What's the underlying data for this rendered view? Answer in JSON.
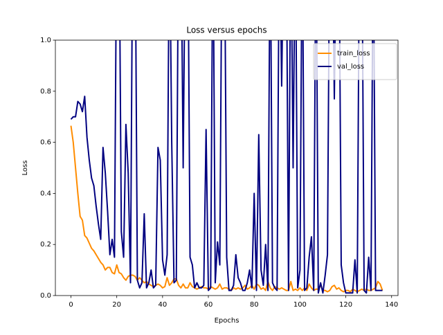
{
  "chart_data": {
    "type": "line",
    "title": "Loss versus epochs",
    "xlabel": "Epochs",
    "ylabel": "Loss",
    "x": [
      0,
      1,
      2,
      3,
      4,
      5,
      6,
      7,
      8,
      9,
      10,
      11,
      12,
      13,
      14,
      15,
      16,
      17,
      18,
      19,
      20,
      21,
      22,
      23,
      24,
      25,
      26,
      27,
      28,
      29,
      30,
      31,
      32,
      33,
      34,
      35,
      36,
      37,
      38,
      39,
      40,
      41,
      42,
      43,
      44,
      45,
      46,
      47,
      48,
      49,
      50,
      51,
      52,
      53,
      54,
      55,
      56,
      57,
      58,
      59,
      60,
      61,
      62,
      63,
      64,
      65,
      66,
      67,
      68,
      69,
      70,
      71,
      72,
      73,
      74,
      75,
      76,
      77,
      78,
      79,
      80,
      81,
      82,
      83,
      84,
      85,
      86,
      87,
      88,
      89,
      90,
      91,
      92,
      93,
      94,
      95,
      96,
      97,
      98,
      99,
      100,
      101,
      102,
      103,
      104,
      105,
      106,
      107,
      108,
      109,
      110,
      111,
      112,
      113,
      114,
      115,
      116,
      117,
      118,
      119,
      120,
      121,
      122,
      123,
      124,
      125,
      126,
      127,
      128,
      129,
      130,
      131,
      132,
      133,
      134,
      135,
      136
    ],
    "series": [
      {
        "name": "train_loss",
        "color": "#ff8c00",
        "values": [
          0.665,
          0.6,
          0.5,
          0.4,
          0.31,
          0.295,
          0.235,
          0.225,
          0.205,
          0.185,
          0.175,
          0.16,
          0.145,
          0.13,
          0.12,
          0.1,
          0.11,
          0.11,
          0.09,
          0.085,
          0.12,
          0.09,
          0.085,
          0.07,
          0.06,
          0.075,
          0.08,
          0.08,
          0.075,
          0.06,
          0.07,
          0.06,
          0.05,
          0.055,
          0.045,
          0.04,
          0.035,
          0.04,
          0.045,
          0.04,
          0.03,
          0.035,
          0.07,
          0.04,
          0.05,
          0.065,
          0.065,
          0.04,
          0.03,
          0.045,
          0.03,
          0.03,
          0.05,
          0.035,
          0.03,
          0.025,
          0.03,
          0.035,
          0.03,
          0.03,
          0.025,
          0.035,
          0.03,
          0.025,
          0.03,
          0.045,
          0.025,
          0.03,
          0.03,
          0.025,
          0.02,
          0.03,
          0.025,
          0.03,
          0.025,
          0.03,
          0.04,
          0.025,
          0.03,
          0.04,
          0.025,
          0.045,
          0.04,
          0.025,
          0.03,
          0.02,
          0.055,
          0.03,
          0.02,
          0.035,
          0.03,
          0.025,
          0.03,
          0.025,
          0.02,
          0.02,
          0.055,
          0.02,
          0.025,
          0.02,
          0.03,
          0.02,
          0.03,
          0.02,
          0.045,
          0.03,
          0.02,
          0.025,
          0.025,
          0.04,
          0.02,
          0.02,
          0.015,
          0.02,
          0.035,
          0.04,
          0.025,
          0.03,
          0.02,
          0.015,
          0.02,
          0.02,
          0.015,
          0.025,
          0.02,
          0.015,
          0.02,
          0.025,
          0.02,
          0.025,
          0.02,
          0.02,
          0.025,
          0.03,
          0.055,
          0.045,
          0.02
        ]
      },
      {
        "name": "val_loss",
        "color": "#000080",
        "values": [
          0.69,
          0.7,
          0.7,
          0.76,
          0.75,
          0.72,
          0.78,
          0.62,
          0.53,
          0.46,
          0.43,
          0.35,
          0.28,
          0.22,
          0.58,
          0.48,
          0.33,
          0.16,
          0.22,
          0.15,
          1.5,
          1.5,
          0.25,
          0.15,
          0.67,
          0.48,
          0.05,
          1.5,
          1.5,
          0.06,
          0.03,
          0.05,
          0.32,
          0.03,
          0.05,
          0.1,
          0.03,
          0.04,
          0.58,
          0.53,
          0.14,
          0.08,
          0.16,
          1.5,
          0.6,
          0.05,
          0.06,
          1.5,
          1.5,
          0.5,
          1.5,
          1.5,
          0.15,
          0.12,
          0.03,
          0.05,
          0.03,
          0.03,
          0.04,
          0.65,
          0.02,
          0.03,
          1.5,
          0.05,
          0.21,
          0.12,
          1.5,
          1.5,
          0.15,
          0.02,
          0.02,
          0.04,
          0.16,
          0.07,
          0.05,
          0.02,
          0.02,
          0.05,
          0.1,
          0.03,
          0.4,
          0.02,
          0.63,
          0.1,
          0.04,
          0.2,
          0.02,
          1.5,
          0.05,
          0.03,
          0.02,
          1.5,
          0.82,
          1.5,
          1.5,
          0.02,
          1.5,
          0.5,
          1.5,
          0.03,
          0.1,
          1.5,
          0.02,
          0.03,
          0.15,
          0.23,
          0.02,
          1.5,
          0.01,
          0.05,
          0.01,
          0.08,
          0.16,
          1.5,
          1.5,
          0.77,
          1.5,
          1.5,
          0.12,
          0.05,
          0.01,
          0.01,
          0.01,
          0.01,
          0.14,
          0.01,
          1.5,
          1.5,
          0.02,
          0.01,
          0.15,
          0.02,
          1.5,
          0.02,
          0.02,
          0.02,
          0.02
        ]
      }
    ],
    "xlim": [
      -6.8,
      142.8
    ],
    "xticks": [
      0,
      20,
      40,
      60,
      80,
      100,
      120,
      140
    ],
    "ylim": [
      0,
      1
    ],
    "yticks": [
      {
        "value": 0,
        "label": "0.0"
      },
      0.2,
      0.4,
      0.6,
      0.8,
      {
        "value": 1,
        "label": "1.0"
      }
    ],
    "legend": "upper right"
  }
}
